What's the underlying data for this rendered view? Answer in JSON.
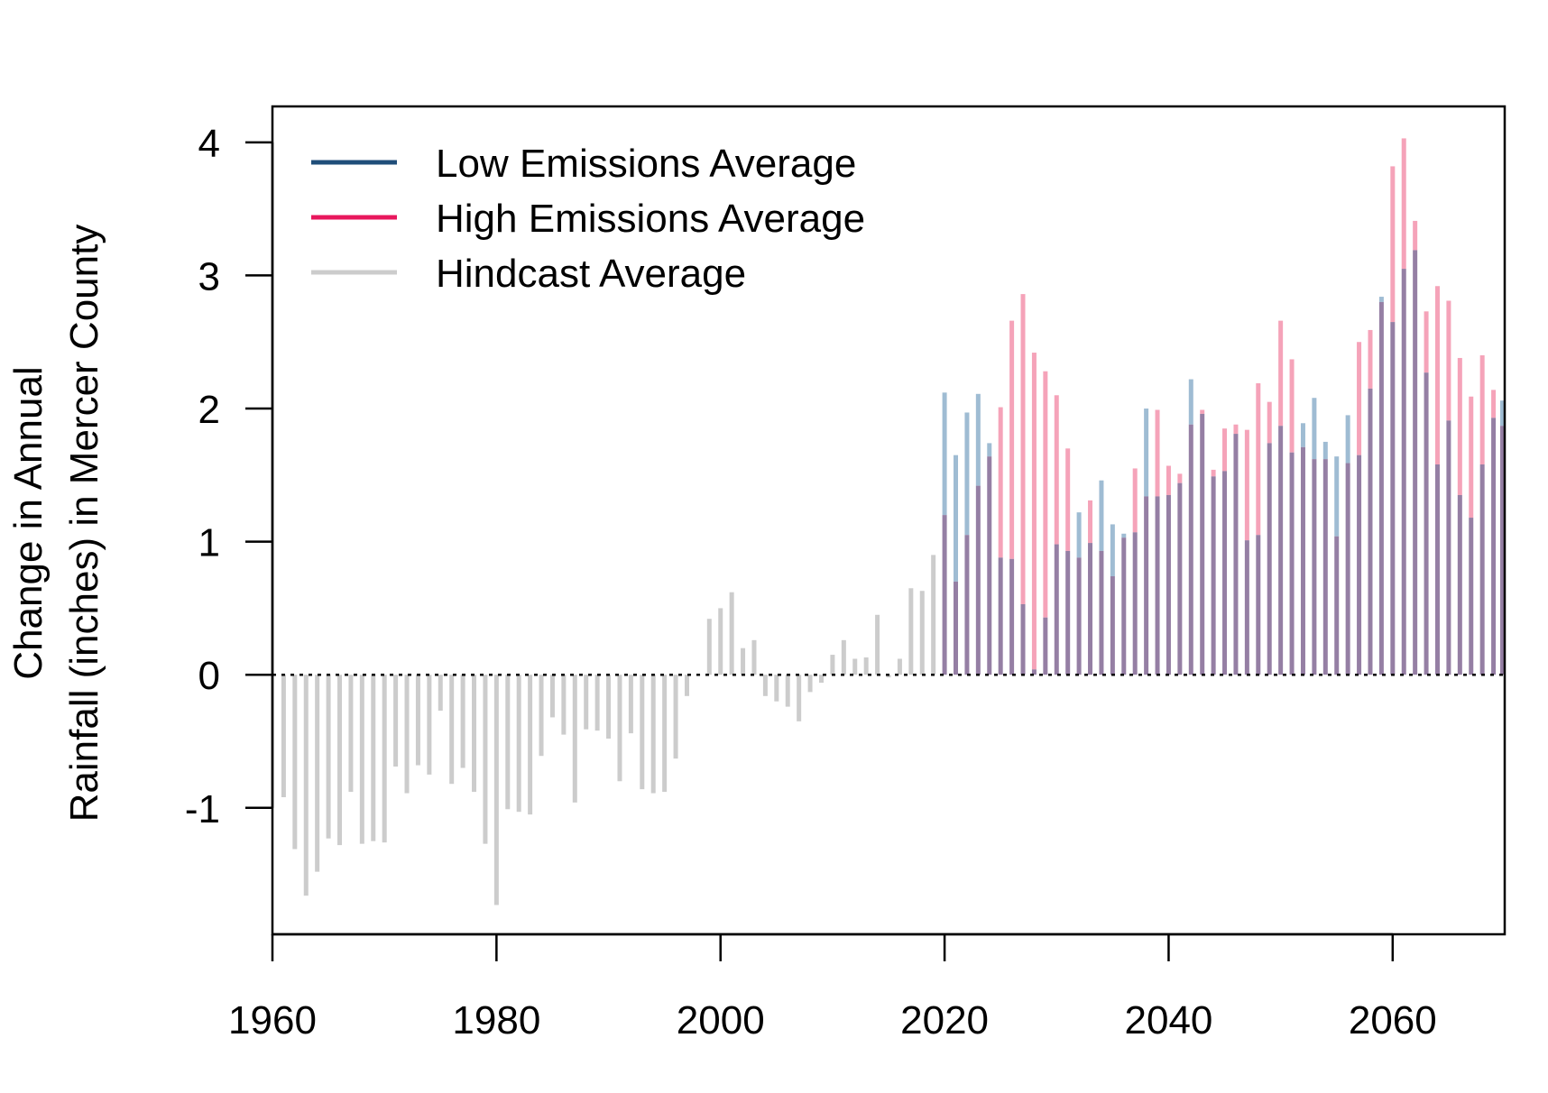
{
  "chart_data": {
    "type": "bar",
    "title": "",
    "xlabel": "",
    "ylabel_lines": [
      "Change in Annual",
      "Rainfall (inches) in Mercer County"
    ],
    "xlim": [
      1960,
      2070
    ],
    "ylim": [
      -1.95,
      4.27
    ],
    "x_ticks": [
      1960,
      1980,
      2000,
      2020,
      2040,
      2060
    ],
    "y_ticks": [
      -1,
      0,
      1,
      2,
      3,
      4
    ],
    "grid": false,
    "legend_position": "top-left",
    "zero_line": "dotted",
    "colors": {
      "low": "#1f4e79",
      "low_bar": "#9fbcd3",
      "high": "#e8175d",
      "high_bar": "#f5a3b9",
      "overlap_bar": "#957fa4",
      "hindcast": "#cccccc"
    },
    "legend": [
      {
        "label": "Low Emissions Average",
        "color": "#1f4e79"
      },
      {
        "label": "High Emissions Average",
        "color": "#e8175d"
      },
      {
        "label": "Hindcast Average",
        "color": "#cccccc"
      }
    ],
    "series": [
      {
        "name": "Hindcast Average",
        "x": [
          1961,
          1962,
          1963,
          1964,
          1965,
          1966,
          1967,
          1968,
          1969,
          1970,
          1971,
          1972,
          1973,
          1974,
          1975,
          1976,
          1977,
          1978,
          1979,
          1980,
          1981,
          1982,
          1983,
          1984,
          1985,
          1986,
          1987,
          1988,
          1989,
          1990,
          1991,
          1992,
          1993,
          1994,
          1995,
          1996,
          1997,
          1998,
          1999,
          2000,
          2001,
          2002,
          2003,
          2004,
          2005,
          2006,
          2007,
          2008,
          2009,
          2010,
          2011,
          2012,
          2013,
          2014,
          2015,
          2016,
          2017,
          2018,
          2019
        ],
        "values": [
          -0.92,
          -1.31,
          -1.66,
          -1.48,
          -1.23,
          -1.28,
          -0.88,
          -1.27,
          -1.25,
          -1.26,
          -0.69,
          -0.89,
          -0.68,
          -0.75,
          -0.27,
          -0.82,
          -0.7,
          -0.88,
          -1.27,
          -1.73,
          -1.01,
          -1.03,
          -1.05,
          -0.61,
          -0.32,
          -0.45,
          -0.96,
          -0.41,
          -0.42,
          -0.48,
          -0.8,
          -0.44,
          -0.86,
          -0.89,
          -0.88,
          -0.63,
          -0.16,
          0.0,
          0.42,
          0.5,
          0.62,
          0.2,
          0.26,
          -0.16,
          -0.2,
          -0.24,
          -0.35,
          -0.13,
          -0.06,
          0.15,
          0.26,
          0.12,
          0.13,
          0.45,
          -0.02,
          0.12,
          0.65,
          0.63,
          0.9
        ]
      },
      {
        "name": "Low Emissions Average",
        "x": [
          2020,
          2021,
          2022,
          2023,
          2024,
          2025,
          2026,
          2027,
          2028,
          2029,
          2030,
          2031,
          2032,
          2033,
          2034,
          2035,
          2036,
          2037,
          2038,
          2039,
          2040,
          2041,
          2042,
          2043,
          2044,
          2045,
          2046,
          2047,
          2048,
          2049,
          2050,
          2051,
          2052,
          2053,
          2054,
          2055,
          2056,
          2057,
          2058,
          2059,
          2060,
          2061,
          2062,
          2063,
          2064,
          2065,
          2066,
          2067,
          2068,
          2069,
          2070
        ],
        "values": [
          2.12,
          1.65,
          1.97,
          2.11,
          1.74,
          0.88,
          0.87,
          0.53,
          0.04,
          0.43,
          0.98,
          0.93,
          1.22,
          0.99,
          1.46,
          1.13,
          1.06,
          1.07,
          2.0,
          1.34,
          1.35,
          1.44,
          2.22,
          1.96,
          1.49,
          1.53,
          1.81,
          1.01,
          1.05,
          1.74,
          1.87,
          1.67,
          1.89,
          2.08,
          1.75,
          1.64,
          1.95,
          1.65,
          2.15,
          2.84,
          2.65,
          3.05,
          3.19,
          2.27,
          1.58,
          1.91,
          1.35,
          1.18,
          1.58,
          1.93,
          2.06
        ]
      },
      {
        "name": "High Emissions Average",
        "x": [
          2020,
          2021,
          2022,
          2023,
          2024,
          2025,
          2026,
          2027,
          2028,
          2029,
          2030,
          2031,
          2032,
          2033,
          2034,
          2035,
          2036,
          2037,
          2038,
          2039,
          2040,
          2041,
          2042,
          2043,
          2044,
          2045,
          2046,
          2047,
          2048,
          2049,
          2050,
          2051,
          2052,
          2053,
          2054,
          2055,
          2056,
          2057,
          2058,
          2059,
          2060,
          2061,
          2062,
          2063,
          2064,
          2065,
          2066,
          2067,
          2068,
          2069,
          2070
        ],
        "values": [
          1.2,
          0.7,
          1.05,
          1.42,
          1.64,
          2.01,
          2.66,
          2.86,
          2.42,
          2.28,
          2.1,
          1.7,
          0.88,
          1.31,
          0.93,
          0.74,
          1.03,
          1.55,
          1.34,
          1.99,
          1.57,
          1.51,
          1.88,
          1.99,
          1.54,
          1.85,
          1.88,
          1.84,
          2.19,
          2.05,
          2.66,
          2.37,
          1.71,
          1.62,
          1.62,
          1.04,
          1.59,
          2.5,
          2.59,
          2.8,
          3.82,
          4.03,
          3.41,
          2.73,
          2.92,
          2.81,
          2.38,
          2.09,
          2.4,
          2.14,
          1.87
        ]
      }
    ]
  }
}
